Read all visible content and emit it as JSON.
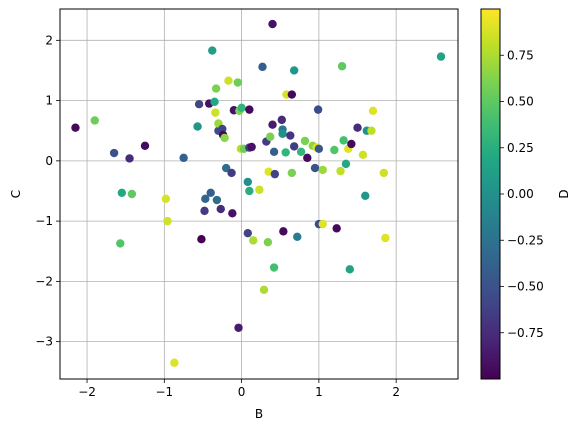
{
  "chart_data": {
    "type": "scatter",
    "title": "",
    "xlabel": "B",
    "ylabel": "C",
    "colorbar_label": "D",
    "xlim": [
      -2.35,
      2.8
    ],
    "ylim": [
      -3.62,
      2.52
    ],
    "clim": [
      -1.0,
      1.0
    ],
    "colormap": "viridis",
    "grid": true,
    "xticks": [
      -2,
      -1,
      0,
      1,
      2
    ],
    "xtick_labels": [
      "−2",
      "−1",
      "0",
      "1",
      "2"
    ],
    "yticks": [
      -3,
      -2,
      -1,
      0,
      1,
      2
    ],
    "ytick_labels": [
      "−3",
      "−2",
      "−1",
      "0",
      "1",
      "2"
    ],
    "cticks": [
      -0.75,
      -0.5,
      -0.25,
      0.0,
      0.25,
      0.5,
      0.75
    ],
    "ctick_labels": [
      "−0.75",
      "−0.50",
      "−0.25",
      "0.00",
      "0.25",
      "0.50",
      "0.75"
    ],
    "points": [
      {
        "x": -2.15,
        "y": 0.55,
        "d": -0.95
      },
      {
        "x": -1.9,
        "y": 0.67,
        "d": 0.55
      },
      {
        "x": -1.65,
        "y": 0.13,
        "d": -0.5
      },
      {
        "x": -1.57,
        "y": -1.37,
        "d": 0.45
      },
      {
        "x": -1.55,
        "y": -0.53,
        "d": 0.2
      },
      {
        "x": -1.45,
        "y": 0.04,
        "d": -0.75
      },
      {
        "x": -1.42,
        "y": -0.55,
        "d": 0.5
      },
      {
        "x": -1.25,
        "y": 0.25,
        "d": -0.95
      },
      {
        "x": -0.98,
        "y": -0.63,
        "d": 0.88
      },
      {
        "x": -0.96,
        "y": -1.0,
        "d": 0.85
      },
      {
        "x": -0.87,
        "y": -3.35,
        "d": 0.9
      },
      {
        "x": -0.75,
        "y": 0.05,
        "d": -0.4
      },
      {
        "x": -0.57,
        "y": 0.57,
        "d": 0.05
      },
      {
        "x": -0.55,
        "y": 0.94,
        "d": -0.6
      },
      {
        "x": -0.52,
        "y": -1.3,
        "d": -1.0
      },
      {
        "x": -0.48,
        "y": -0.83,
        "d": -0.65
      },
      {
        "x": -0.47,
        "y": -0.63,
        "d": -0.35
      },
      {
        "x": -0.42,
        "y": 0.95,
        "d": -0.9
      },
      {
        "x": -0.4,
        "y": -0.53,
        "d": -0.4
      },
      {
        "x": -0.38,
        "y": 1.83,
        "d": 0.1
      },
      {
        "x": -0.35,
        "y": 0.98,
        "d": 0.2
      },
      {
        "x": -0.34,
        "y": 0.8,
        "d": 0.85
      },
      {
        "x": -0.33,
        "y": 1.2,
        "d": 0.6
      },
      {
        "x": -0.32,
        "y": -0.65,
        "d": -0.3
      },
      {
        "x": -0.3,
        "y": 0.5,
        "d": -0.55
      },
      {
        "x": -0.3,
        "y": 0.62,
        "d": 0.7
      },
      {
        "x": -0.27,
        "y": -0.8,
        "d": -0.75
      },
      {
        "x": -0.25,
        "y": 0.53,
        "d": -0.6
      },
      {
        "x": -0.24,
        "y": 0.43,
        "d": -0.95
      },
      {
        "x": -0.22,
        "y": 0.38,
        "d": 0.65
      },
      {
        "x": -0.2,
        "y": -0.12,
        "d": -0.3
      },
      {
        "x": -0.17,
        "y": 1.33,
        "d": 0.85
      },
      {
        "x": -0.13,
        "y": -0.2,
        "d": -0.65
      },
      {
        "x": -0.12,
        "y": -0.87,
        "d": -0.9
      },
      {
        "x": -0.1,
        "y": 0.84,
        "d": -0.9
      },
      {
        "x": -0.05,
        "y": 1.3,
        "d": 0.55
      },
      {
        "x": -0.04,
        "y": -2.77,
        "d": -0.85
      },
      {
        "x": -0.03,
        "y": 0.83,
        "d": 0.6
      },
      {
        "x": -0.01,
        "y": 0.2,
        "d": 0.8
      },
      {
        "x": 0.0,
        "y": 0.88,
        "d": 0.3
      },
      {
        "x": 0.03,
        "y": 0.2,
        "d": 0.55
      },
      {
        "x": 0.08,
        "y": -0.35,
        "d": 0.0
      },
      {
        "x": 0.08,
        "y": -1.2,
        "d": -0.6
      },
      {
        "x": 0.1,
        "y": 0.85,
        "d": -0.95
      },
      {
        "x": 0.1,
        "y": 0.22,
        "d": -0.65
      },
      {
        "x": 0.1,
        "y": -0.5,
        "d": 0.25
      },
      {
        "x": 0.13,
        "y": 0.23,
        "d": -0.9
      },
      {
        "x": 0.15,
        "y": -1.32,
        "d": 0.75
      },
      {
        "x": 0.23,
        "y": -0.48,
        "d": 0.85
      },
      {
        "x": 0.27,
        "y": 1.56,
        "d": -0.4
      },
      {
        "x": 0.29,
        "y": -2.14,
        "d": 0.75
      },
      {
        "x": 0.32,
        "y": 0.32,
        "d": -0.65
      },
      {
        "x": 0.34,
        "y": -1.35,
        "d": 0.6
      },
      {
        "x": 0.35,
        "y": -0.18,
        "d": 0.9
      },
      {
        "x": 0.37,
        "y": 0.4,
        "d": 0.6
      },
      {
        "x": 0.4,
        "y": 2.27,
        "d": -0.9
      },
      {
        "x": 0.4,
        "y": 0.6,
        "d": -0.85
      },
      {
        "x": 0.42,
        "y": 0.15,
        "d": -0.4
      },
      {
        "x": 0.42,
        "y": -1.77,
        "d": 0.4
      },
      {
        "x": 0.43,
        "y": -0.22,
        "d": -0.6
      },
      {
        "x": 0.52,
        "y": 0.68,
        "d": -0.75
      },
      {
        "x": 0.53,
        "y": 0.52,
        "d": -0.2
      },
      {
        "x": 0.53,
        "y": 0.45,
        "d": 0.0
      },
      {
        "x": 0.54,
        "y": -1.17,
        "d": -0.95
      },
      {
        "x": 0.57,
        "y": 0.14,
        "d": 0.3
      },
      {
        "x": 0.58,
        "y": 1.1,
        "d": 0.88
      },
      {
        "x": 0.63,
        "y": 0.42,
        "d": -0.7
      },
      {
        "x": 0.65,
        "y": -0.2,
        "d": 0.6
      },
      {
        "x": 0.65,
        "y": 1.1,
        "d": -0.95
      },
      {
        "x": 0.68,
        "y": 0.24,
        "d": -0.65
      },
      {
        "x": 0.68,
        "y": 1.5,
        "d": 0.05
      },
      {
        "x": 0.72,
        "y": -1.26,
        "d": -0.15
      },
      {
        "x": 0.77,
        "y": 0.15,
        "d": 0.3
      },
      {
        "x": 0.82,
        "y": 0.33,
        "d": 0.6
      },
      {
        "x": 0.85,
        "y": 0.05,
        "d": -0.95
      },
      {
        "x": 0.92,
        "y": 0.25,
        "d": 0.65
      },
      {
        "x": 0.95,
        "y": -0.12,
        "d": -0.5
      },
      {
        "x": 0.97,
        "y": 0.22,
        "d": 0.9
      },
      {
        "x": 0.99,
        "y": 0.85,
        "d": -0.55
      },
      {
        "x": 1.0,
        "y": -1.05,
        "d": -0.55
      },
      {
        "x": 1.0,
        "y": 0.2,
        "d": -0.45
      },
      {
        "x": 1.05,
        "y": -1.05,
        "d": 0.9
      },
      {
        "x": 1.05,
        "y": -0.15,
        "d": 0.7
      },
      {
        "x": 1.2,
        "y": 0.18,
        "d": 0.45
      },
      {
        "x": 1.23,
        "y": -1.12,
        "d": -0.95
      },
      {
        "x": 1.28,
        "y": -0.17,
        "d": 0.8
      },
      {
        "x": 1.3,
        "y": 1.57,
        "d": 0.5
      },
      {
        "x": 1.32,
        "y": 0.34,
        "d": 0.4
      },
      {
        "x": 1.35,
        "y": -0.05,
        "d": 0.2
      },
      {
        "x": 1.38,
        "y": 0.2,
        "d": 0.9
      },
      {
        "x": 1.4,
        "y": -1.8,
        "d": 0.15
      },
      {
        "x": 1.42,
        "y": 0.28,
        "d": -0.95
      },
      {
        "x": 1.5,
        "y": 0.55,
        "d": -0.75
      },
      {
        "x": 1.57,
        "y": 0.1,
        "d": 0.85
      },
      {
        "x": 1.6,
        "y": -0.58,
        "d": 0.05
      },
      {
        "x": 1.62,
        "y": 0.5,
        "d": 0.0
      },
      {
        "x": 1.68,
        "y": 0.5,
        "d": 0.8
      },
      {
        "x": 1.7,
        "y": 0.83,
        "d": 0.9
      },
      {
        "x": 1.84,
        "y": -0.2,
        "d": 0.85
      },
      {
        "x": 1.86,
        "y": -1.28,
        "d": 0.9
      },
      {
        "x": 2.58,
        "y": 1.73,
        "d": 0.15
      }
    ]
  }
}
